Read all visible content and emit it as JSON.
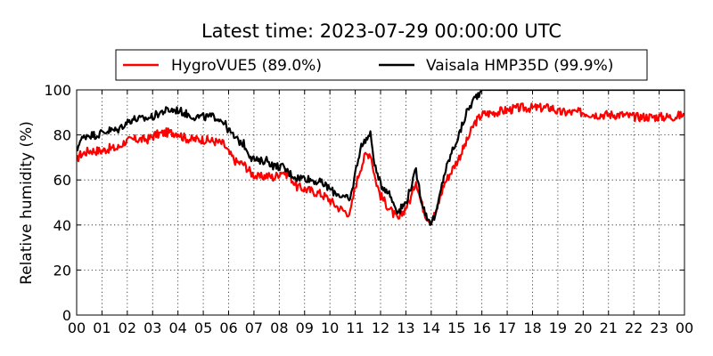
{
  "chart_data": {
    "type": "line",
    "title": "Latest time: 2023-07-29 00:00:00 UTC",
    "xlabel": "",
    "ylabel": "Relative humidity (%)",
    "x_ticks": [
      "00",
      "01",
      "02",
      "03",
      "04",
      "05",
      "06",
      "07",
      "08",
      "09",
      "10",
      "11",
      "12",
      "13",
      "14",
      "15",
      "16",
      "17",
      "18",
      "19",
      "20",
      "21",
      "22",
      "23",
      "00"
    ],
    "xlim": [
      0,
      24
    ],
    "ylim": [
      0,
      100
    ],
    "y_ticks": [
      0,
      20,
      40,
      60,
      80,
      100
    ],
    "grid": true,
    "legend_position": "top",
    "series": [
      {
        "name": "HygroVUE5 (89.0%)",
        "color": "#ff0000",
        "points": [
          [
            0.0,
            68
          ],
          [
            0.1,
            71
          ],
          [
            0.5,
            73
          ],
          [
            1.0,
            73
          ],
          [
            1.3,
            74
          ],
          [
            1.6,
            74
          ],
          [
            1.9,
            77
          ],
          [
            2.3,
            78
          ],
          [
            2.8,
            78
          ],
          [
            3.1,
            80
          ],
          [
            3.5,
            81
          ],
          [
            4.0,
            81
          ],
          [
            4.2,
            79
          ],
          [
            4.5,
            78
          ],
          [
            5.0,
            78
          ],
          [
            5.5,
            77
          ],
          [
            5.8,
            76
          ],
          [
            6.0,
            72
          ],
          [
            6.3,
            68
          ],
          [
            6.6,
            67
          ],
          [
            6.9,
            63
          ],
          [
            7.2,
            61
          ],
          [
            7.5,
            62
          ],
          [
            7.8,
            61
          ],
          [
            8.1,
            64
          ],
          [
            8.4,
            62
          ],
          [
            8.7,
            57
          ],
          [
            9.0,
            56
          ],
          [
            9.3,
            55
          ],
          [
            9.6,
            54
          ],
          [
            9.9,
            52
          ],
          [
            10.1,
            50
          ],
          [
            10.3,
            48
          ],
          [
            10.6,
            46
          ],
          [
            10.8,
            45
          ],
          [
            11.0,
            57
          ],
          [
            11.2,
            65
          ],
          [
            11.4,
            71
          ],
          [
            11.6,
            72
          ],
          [
            11.8,
            60
          ],
          [
            12.0,
            53
          ],
          [
            12.3,
            48
          ],
          [
            12.5,
            45
          ],
          [
            12.7,
            42
          ],
          [
            13.0,
            48
          ],
          [
            13.2,
            52
          ],
          [
            13.4,
            60
          ],
          [
            13.6,
            50
          ],
          [
            13.8,
            44
          ],
          [
            14.0,
            42
          ],
          [
            14.2,
            46
          ],
          [
            14.5,
            58
          ],
          [
            14.8,
            64
          ],
          [
            15.1,
            70
          ],
          [
            15.4,
            77
          ],
          [
            15.7,
            85
          ],
          [
            16.0,
            89
          ],
          [
            16.5,
            90
          ],
          [
            17.0,
            91
          ],
          [
            17.5,
            92
          ],
          [
            18.0,
            92
          ],
          [
            18.5,
            92
          ],
          [
            18.8,
            92
          ],
          [
            19.0,
            90
          ],
          [
            19.5,
            90
          ],
          [
            20.0,
            90
          ],
          [
            20.5,
            89
          ],
          [
            21.0,
            89
          ],
          [
            21.5,
            89
          ],
          [
            22.0,
            88
          ],
          [
            22.5,
            88
          ],
          [
            23.0,
            88
          ],
          [
            23.5,
            88
          ],
          [
            24.0,
            89
          ]
        ]
      },
      {
        "name": "Vaisala HMP35D (99.9%)",
        "color": "#000000",
        "points": [
          [
            0.0,
            72
          ],
          [
            0.1,
            77
          ],
          [
            0.4,
            80
          ],
          [
            0.8,
            80
          ],
          [
            1.0,
            81
          ],
          [
            1.3,
            82
          ],
          [
            1.6,
            82
          ],
          [
            1.9,
            85
          ],
          [
            2.2,
            87
          ],
          [
            2.6,
            87
          ],
          [
            3.0,
            88
          ],
          [
            3.3,
            90
          ],
          [
            3.6,
            91
          ],
          [
            4.0,
            91
          ],
          [
            4.2,
            90
          ],
          [
            4.4,
            89
          ],
          [
            4.7,
            88
          ],
          [
            5.0,
            88
          ],
          [
            5.5,
            88
          ],
          [
            5.8,
            86
          ],
          [
            6.0,
            82
          ],
          [
            6.3,
            78
          ],
          [
            6.6,
            76
          ],
          [
            6.9,
            70
          ],
          [
            7.2,
            68
          ],
          [
            7.5,
            69
          ],
          [
            7.8,
            66
          ],
          [
            8.1,
            66
          ],
          [
            8.4,
            63
          ],
          [
            8.7,
            61
          ],
          [
            9.0,
            61
          ],
          [
            9.3,
            60
          ],
          [
            9.6,
            59
          ],
          [
            9.9,
            57
          ],
          [
            10.1,
            55
          ],
          [
            10.3,
            54
          ],
          [
            10.6,
            52
          ],
          [
            10.8,
            51
          ],
          [
            11.0,
            63
          ],
          [
            11.2,
            74
          ],
          [
            11.4,
            78
          ],
          [
            11.6,
            80
          ],
          [
            11.8,
            65
          ],
          [
            12.0,
            58
          ],
          [
            12.3,
            55
          ],
          [
            12.5,
            50
          ],
          [
            12.7,
            46
          ],
          [
            13.0,
            50
          ],
          [
            13.2,
            57
          ],
          [
            13.4,
            64
          ],
          [
            13.6,
            52
          ],
          [
            13.8,
            44
          ],
          [
            14.0,
            41
          ],
          [
            14.2,
            45
          ],
          [
            14.5,
            62
          ],
          [
            14.8,
            72
          ],
          [
            15.1,
            80
          ],
          [
            15.4,
            90
          ],
          [
            15.7,
            96
          ],
          [
            16.0,
            100
          ],
          [
            24.0,
            100
          ]
        ]
      }
    ]
  }
}
